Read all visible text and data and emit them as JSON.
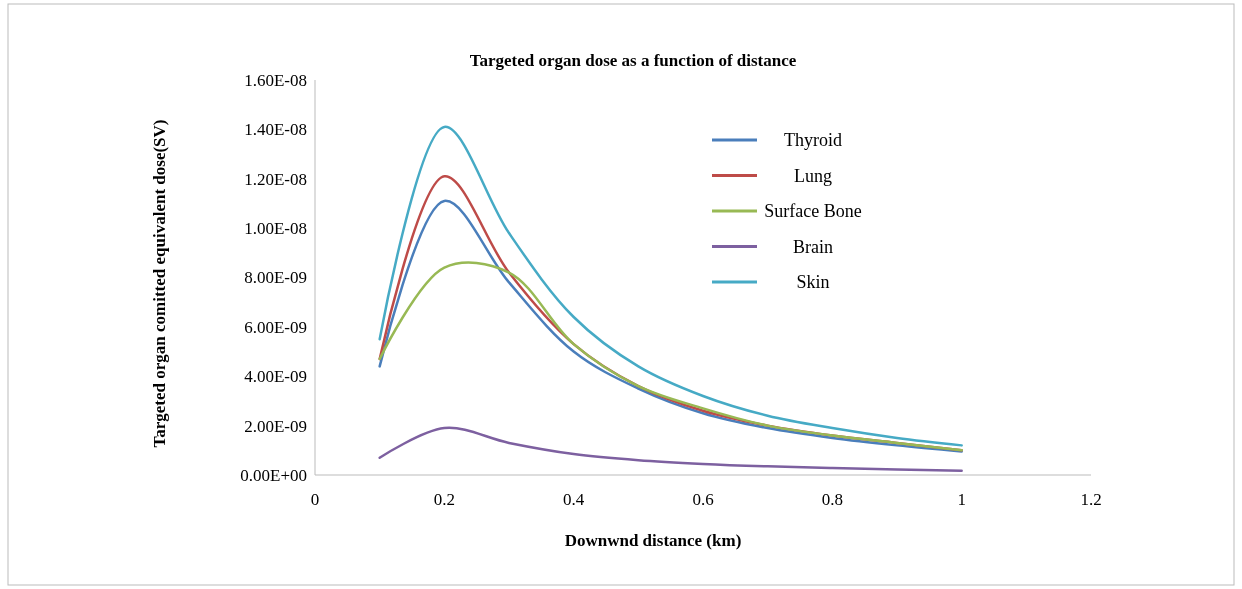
{
  "chart_data": {
    "type": "line",
    "title": "Targeted organ dose as a function of distance",
    "xlabel": "Downwnd distance (km)",
    "ylabel": "Targeted organ comitted equivalent dose(SV)",
    "x": [
      0.1,
      0.2,
      0.3,
      0.4,
      0.5,
      0.6,
      0.7,
      0.8,
      0.9,
      1.0
    ],
    "series": [
      {
        "name": "Thyroid",
        "color": "#4a7ebb",
        "values": [
          4.4e-09,
          1.11e-08,
          7.8e-09,
          5e-09,
          3.5e-09,
          2.5e-09,
          1.9e-09,
          1.5e-09,
          1.2e-09,
          9.5e-10
        ]
      },
      {
        "name": "Lung",
        "color": "#be4b48",
        "values": [
          4.7e-09,
          1.21e-08,
          8.2e-09,
          5.3e-09,
          3.6e-09,
          2.6e-09,
          2e-09,
          1.6e-09,
          1.3e-09,
          1e-09
        ]
      },
      {
        "name": "Surface Bone",
        "color": "#98b954",
        "values": [
          4.7e-09,
          8.4e-09,
          8.2e-09,
          5.3e-09,
          3.6e-09,
          2.7e-09,
          2e-09,
          1.6e-09,
          1.3e-09,
          1e-09
        ]
      },
      {
        "name": "Brain",
        "color": "#7d60a0",
        "values": [
          7e-10,
          1.9e-09,
          1.3e-09,
          8.5e-10,
          6e-10,
          4.5e-10,
          3.5e-10,
          2.8e-10,
          2.2e-10,
          1.7e-10
        ]
      },
      {
        "name": "Skin",
        "color": "#46aac5",
        "values": [
          5.5e-09,
          1.41e-08,
          9.8e-09,
          6.4e-09,
          4.4e-09,
          3.2e-09,
          2.4e-09,
          1.9e-09,
          1.5e-09,
          1.2e-09
        ]
      }
    ],
    "xlim": [
      0,
      1.2
    ],
    "xticks": [
      0,
      0.2,
      0.4,
      0.6,
      0.8,
      1,
      1.2
    ],
    "ylim": [
      0,
      1.6e-08
    ],
    "yticks": [
      {
        "value": 0,
        "label": "0.00E+00"
      },
      {
        "value": 2e-09,
        "label": "2.00E-09"
      },
      {
        "value": 4e-09,
        "label": "4.00E-09"
      },
      {
        "value": 6e-09,
        "label": "6.00E-09"
      },
      {
        "value": 8e-09,
        "label": "8.00E-09"
      },
      {
        "value": 1e-08,
        "label": "1.00E-08"
      },
      {
        "value": 1.2e-08,
        "label": "1.20E-08"
      },
      {
        "value": 1.4e-08,
        "label": "1.40E-08"
      },
      {
        "value": 1.6e-08,
        "label": "1.60E-08"
      }
    ],
    "grid": false,
    "legend": "top right",
    "marker": "none",
    "line_style": "solid"
  }
}
